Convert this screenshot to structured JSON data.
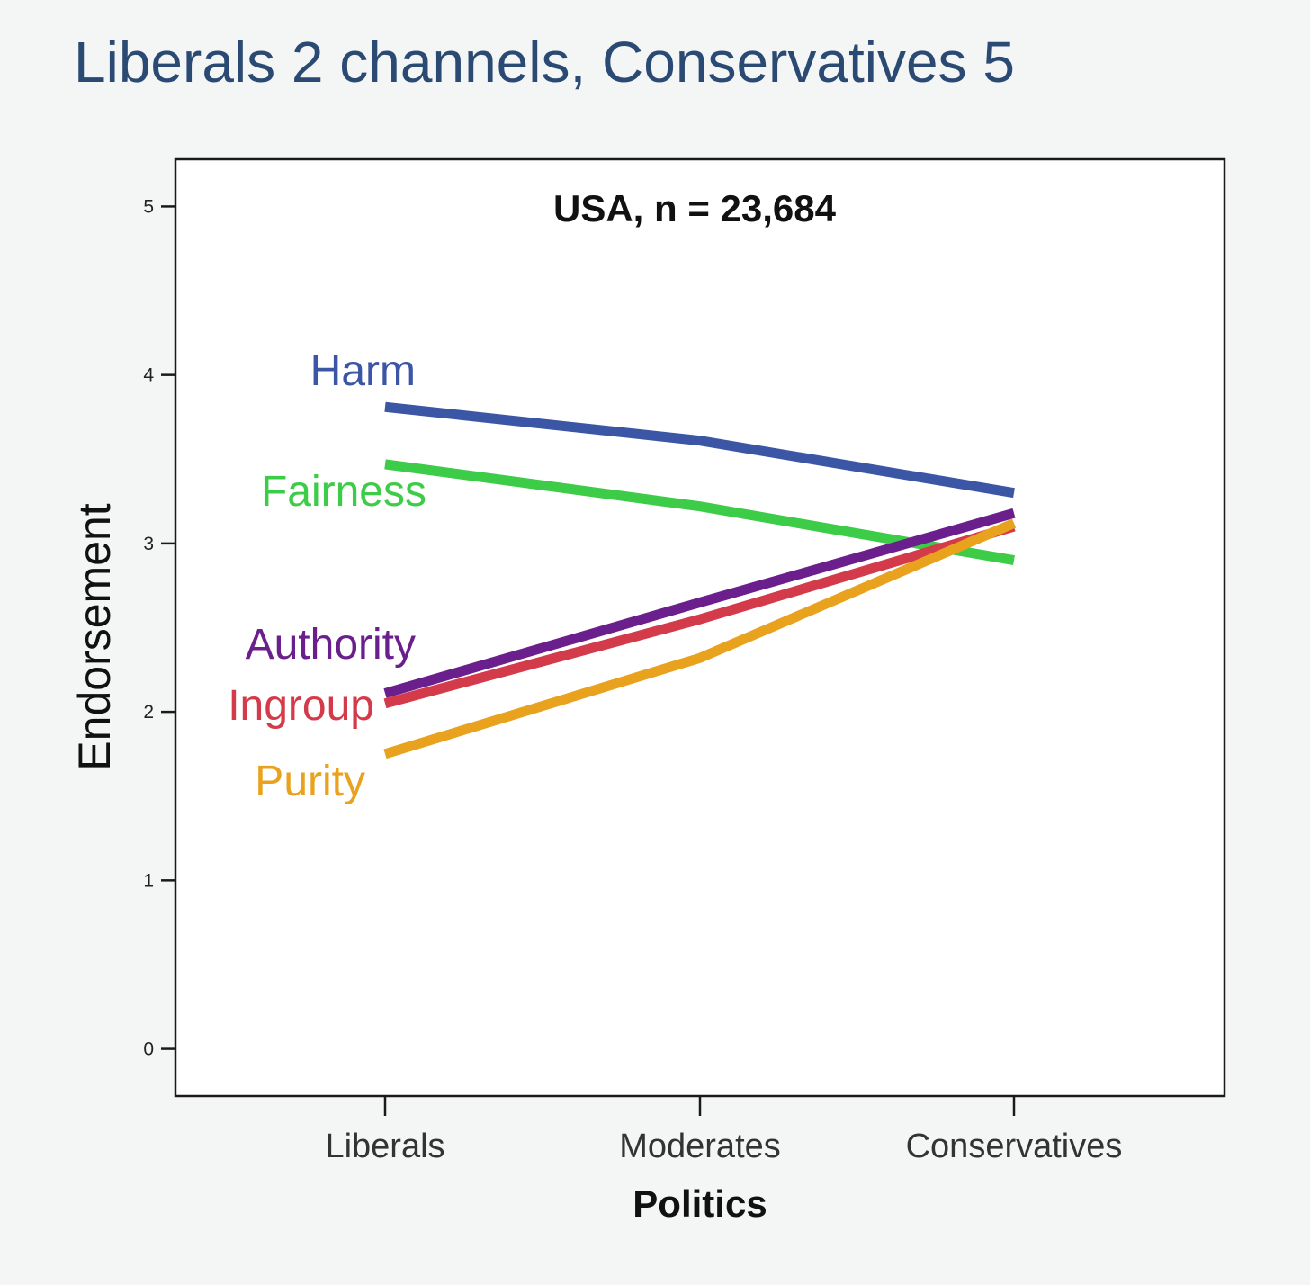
{
  "slide": {
    "title": "Liberals 2 channels, Conservatives 5",
    "title_color": "#2b4a73"
  },
  "chart_data": {
    "type": "line",
    "title": "USA, n = 23,684",
    "xlabel": "Politics",
    "ylabel": "Endorsement",
    "categories": [
      "Liberals",
      "Moderates",
      "Conservatives"
    ],
    "ylim": [
      -0.28,
      5.28
    ],
    "yticks": [
      0,
      1,
      2,
      3,
      4,
      5
    ],
    "grid": false,
    "legend": "direct labels at left of lines",
    "series": [
      {
        "name": "Harm",
        "values": [
          3.81,
          3.61,
          3.3
        ],
        "color": "#3c56a6"
      },
      {
        "name": "Fairness",
        "values": [
          3.47,
          3.22,
          2.9
        ],
        "color": "#3dcc48"
      },
      {
        "name": "Authority",
        "values": [
          2.11,
          2.65,
          3.18
        ],
        "color": "#6a1f8c"
      },
      {
        "name": "Ingroup",
        "values": [
          2.05,
          2.55,
          3.1
        ],
        "color": "#d33a4a"
      },
      {
        "name": "Purity",
        "values": [
          1.75,
          2.32,
          3.12
        ],
        "color": "#e8a21e"
      }
    ]
  }
}
